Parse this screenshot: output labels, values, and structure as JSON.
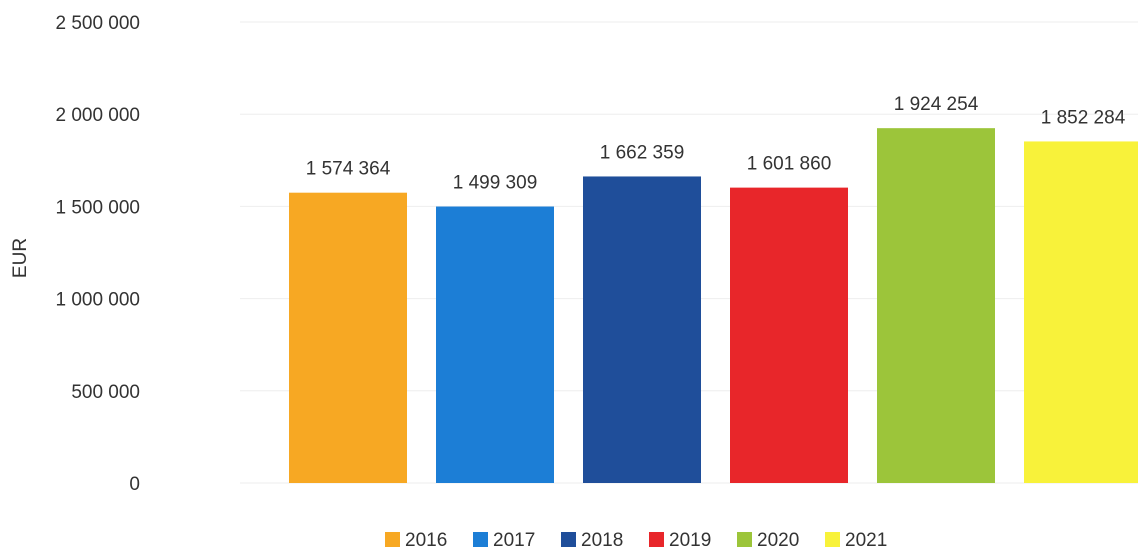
{
  "chart_data": {
    "type": "bar",
    "categories": [
      "2016",
      "2017",
      "2018",
      "2019",
      "2020",
      "2021"
    ],
    "values": [
      1574364,
      1499309,
      1662359,
      1601860,
      1924254,
      1852284
    ],
    "value_labels": [
      "1 574 364",
      "1 499 309",
      "1 662 359",
      "1 601 860",
      "1 924 254",
      "1 852 284"
    ],
    "colors": [
      "#F7A823",
      "#1C7ED6",
      "#1F4E9A",
      "#E8262A",
      "#9CC53A",
      "#F8F23A"
    ],
    "ylabel": "EUR",
    "xlabel": "",
    "ylim": [
      0,
      2500000
    ],
    "yticks": [
      0,
      500000,
      1000000,
      1500000,
      2000000,
      2500000
    ],
    "ytick_labels": [
      "0",
      "500 000",
      "1 000 000",
      "1 500 000",
      "2 000 000",
      "2 500 000"
    ],
    "grid": true,
    "legend": {
      "placement": "bottom",
      "entries": [
        "2016",
        "2017",
        "2018",
        "2019",
        "2020",
        "2021"
      ]
    }
  }
}
